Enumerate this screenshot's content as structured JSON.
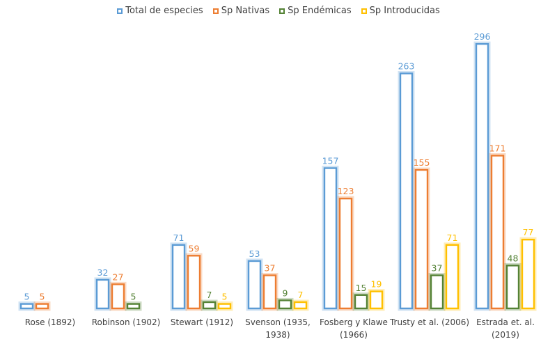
{
  "chart_data": {
    "type": "bar",
    "title": "",
    "xlabel": "",
    "ylabel": "",
    "ylim": [
      0,
      300
    ],
    "grid": false,
    "legend_position": "top-center",
    "categories": [
      [
        "Rose (1892)"
      ],
      [
        "Robinson (1902)"
      ],
      [
        "Stewart (1912)"
      ],
      [
        "Svenson (1935,",
        "1938)"
      ],
      [
        "Fosberg y Klawe",
        "(1966)"
      ],
      [
        "Trusty et al. (2006)"
      ],
      [
        "Estrada et. al.",
        "(2019)"
      ]
    ],
    "series": [
      {
        "name": "Total de especies",
        "color": "#5b9bd5",
        "values": [
          5,
          32,
          71,
          53,
          157,
          263,
          296
        ]
      },
      {
        "name": "Sp Nativas",
        "color": "#ed7d31",
        "values": [
          5,
          27,
          59,
          37,
          123,
          155,
          171
        ]
      },
      {
        "name": "Sp Endémicas",
        "color": "#548235",
        "values": [
          null,
          5,
          7,
          9,
          15,
          37,
          48
        ]
      },
      {
        "name": "Sp Introducidas",
        "color": "#ffc000",
        "values": [
          null,
          null,
          5,
          7,
          19,
          71,
          77
        ]
      }
    ]
  }
}
